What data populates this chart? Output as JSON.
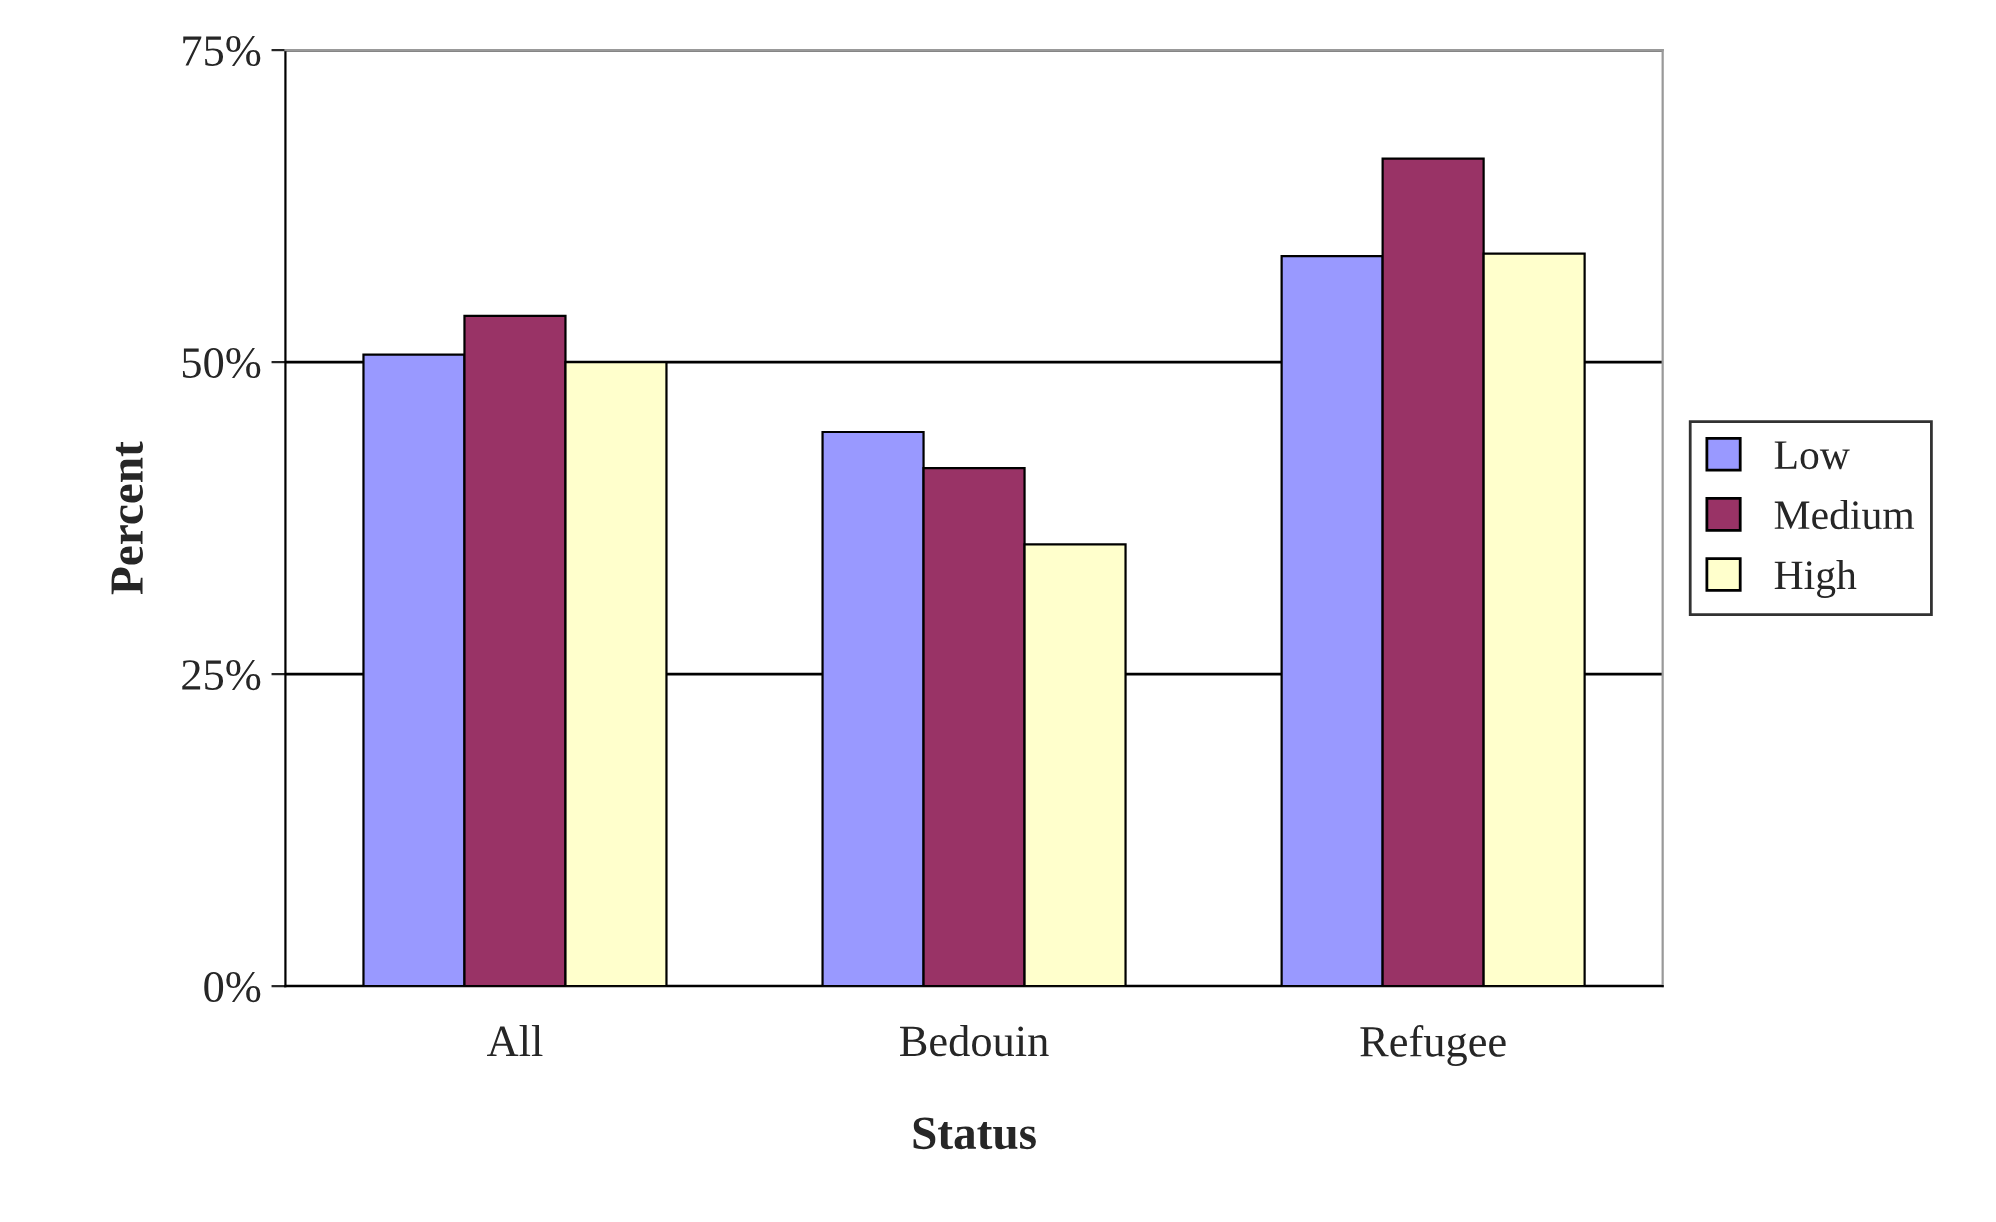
{
  "chart_data": {
    "type": "bar",
    "xlabel": "Status",
    "ylabel": "Percent",
    "categories": [
      "All",
      "Bedouin",
      "Refugee"
    ],
    "series": [
      {
        "name": "Low",
        "color": "#9999ff",
        "values": [
          50.6,
          44.4,
          58.5
        ]
      },
      {
        "name": "Medium",
        "color": "#993366",
        "values": [
          53.7,
          41.5,
          66.3
        ]
      },
      {
        "name": "High",
        "color": "#ffffcc",
        "values": [
          50.0,
          35.4,
          58.7
        ]
      }
    ],
    "ylim": [
      0,
      75
    ],
    "yticks": [
      {
        "value": 0,
        "label": "0%"
      },
      {
        "value": 25,
        "label": "25%"
      },
      {
        "value": 50,
        "label": "50%"
      },
      {
        "value": 75,
        "label": "75%"
      }
    ],
    "grid": "y",
    "legend": "right"
  }
}
